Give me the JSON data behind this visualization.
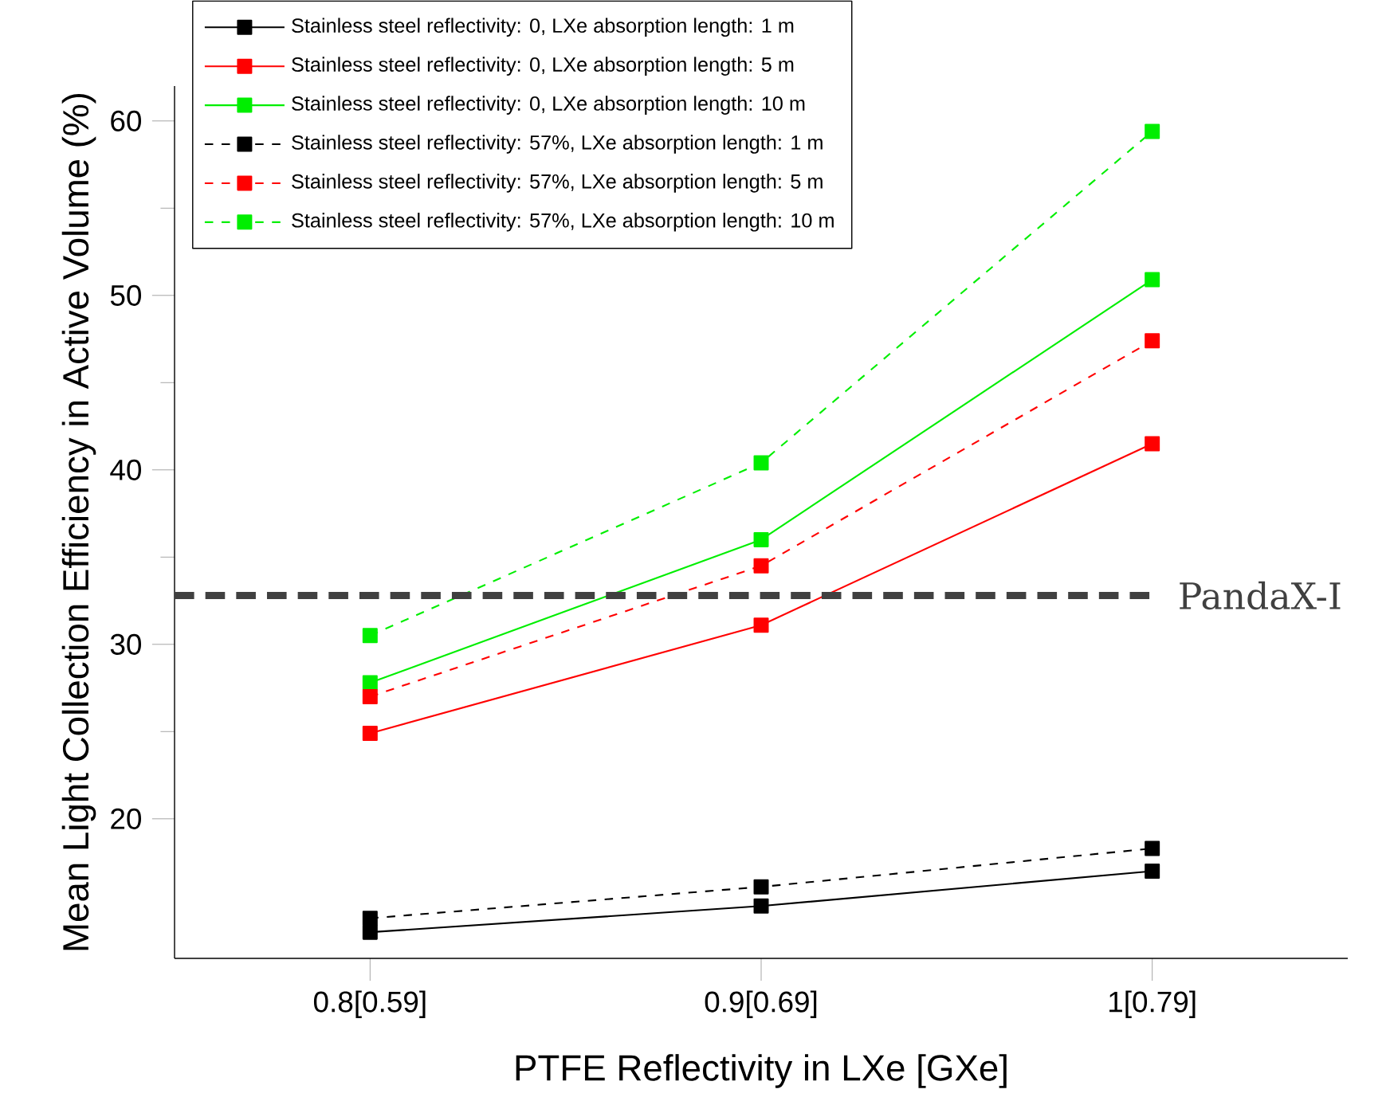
{
  "chart_data": {
    "type": "line",
    "xlabel": "PTFE Reflectivity in LXe [GXe]",
    "ylabel": "Mean Light Collection Efficiency in Active Volume (%)",
    "categories": [
      "0.8[0.59]",
      "0.9[0.69]",
      "1[0.79]"
    ],
    "ylim": [
      12,
      62
    ],
    "yticks": [
      20,
      30,
      40,
      50,
      60
    ],
    "marker": "square",
    "legend": "top left",
    "grid": false,
    "series": [
      {
        "name": "Stainless steel reflectivity: 0, LXe absorption length: 1 m",
        "color": "#000000",
        "line_style": "solid",
        "values": [
          13.5,
          15.0,
          17.0
        ]
      },
      {
        "name": "Stainless steel reflectivity: 0, LXe absorption length: 5 m",
        "color": "#ff0000",
        "line_style": "solid",
        "values": [
          24.9,
          31.1,
          41.5
        ]
      },
      {
        "name": "Stainless steel reflectivity: 0, LXe absorption length: 10 m",
        "color": "#00ee00",
        "line_style": "solid",
        "values": [
          27.8,
          36.0,
          50.9
        ]
      },
      {
        "name": "Stainless steel reflectivity: 57%, LXe absorption length: 1 m",
        "color": "#000000",
        "line_style": "dashed",
        "values": [
          14.3,
          16.1,
          18.3
        ]
      },
      {
        "name": "Stainless steel reflectivity: 57%, LXe absorption length: 5 m",
        "color": "#ff0000",
        "line_style": "dashed",
        "values": [
          27.0,
          34.5,
          47.4
        ]
      },
      {
        "name": "Stainless steel reflectivity: 57%,  LXe absorption length: 10 m",
        "color": "#00ee00",
        "line_style": "dashed",
        "values": [
          30.5,
          40.4,
          59.4
        ]
      }
    ],
    "ref_lines": [
      {
        "axis": "y",
        "value": 32.8,
        "label": "PandaX-I",
        "color": "#404040",
        "line_style": "dashed"
      }
    ]
  }
}
